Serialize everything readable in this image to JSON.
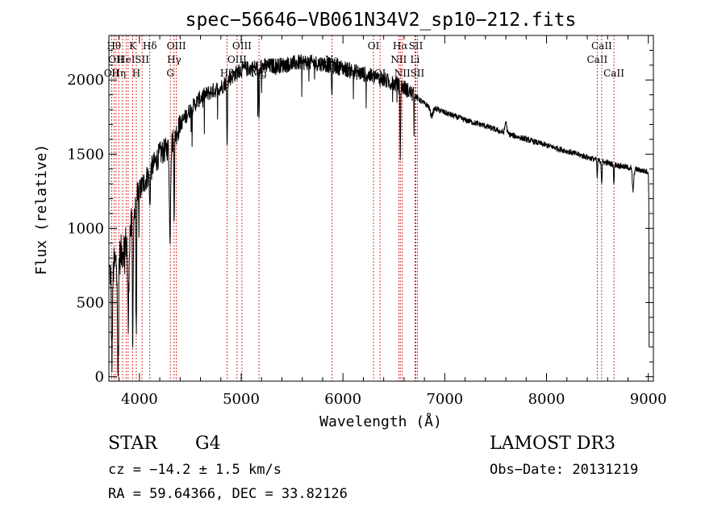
{
  "chart_data": {
    "type": "line",
    "title": "spec−56646−VB061N34V2_sp10−212.fits",
    "xlabel": "Wavelength (Å)",
    "ylabel": "Flux (relative)",
    "xlim": [
      3700,
      9050
    ],
    "ylim": [
      -30,
      2300
    ],
    "xticks": [
      4000,
      5000,
      6000,
      7000,
      8000,
      9000
    ],
    "yticks": [
      0,
      500,
      1000,
      1500,
      2000
    ],
    "grid": false,
    "line_color": "#000000",
    "marker_color": "#cc0000",
    "continuum": [
      [
        3700,
        700
      ],
      [
        3800,
        800
      ],
      [
        3900,
        950
      ],
      [
        4000,
        1250
      ],
      [
        4100,
        1380
      ],
      [
        4200,
        1500
      ],
      [
        4300,
        1550
      ],
      [
        4400,
        1700
      ],
      [
        4500,
        1800
      ],
      [
        4600,
        1880
      ],
      [
        4700,
        1920
      ],
      [
        4800,
        1950
      ],
      [
        4900,
        2020
      ],
      [
        5000,
        2070
      ],
      [
        5200,
        2090
      ],
      [
        5400,
        2100
      ],
      [
        5600,
        2120
      ],
      [
        5800,
        2110
      ],
      [
        6000,
        2080
      ],
      [
        6200,
        2040
      ],
      [
        6400,
        2000
      ],
      [
        6600,
        1950
      ],
      [
        6800,
        1840
      ],
      [
        7000,
        1780
      ],
      [
        7200,
        1730
      ],
      [
        7400,
        1690
      ],
      [
        7600,
        1640
      ],
      [
        7800,
        1600
      ],
      [
        8000,
        1560
      ],
      [
        8200,
        1520
      ],
      [
        8400,
        1480
      ],
      [
        8600,
        1440
      ],
      [
        8800,
        1410
      ],
      [
        9000,
        1380
      ]
    ],
    "absorption_features": [
      {
        "x": 3730,
        "depth": 600,
        "width": 8
      },
      {
        "x": 3790,
        "depth": 800,
        "width": 6
      },
      {
        "x": 3890,
        "depth": 600,
        "width": 8
      },
      {
        "x": 3934,
        "depth": 900,
        "width": 5
      },
      {
        "x": 3969,
        "depth": 800,
        "width": 5
      },
      {
        "x": 4102,
        "depth": 250,
        "width": 6
      },
      {
        "x": 4300,
        "depth": 650,
        "width": 8
      },
      {
        "x": 4341,
        "depth": 500,
        "width": 5
      },
      {
        "x": 4861,
        "depth": 450,
        "width": 5
      },
      {
        "x": 5175,
        "depth": 350,
        "width": 6
      },
      {
        "x": 5890,
        "depth": 200,
        "width": 5
      },
      {
        "x": 6563,
        "depth": 450,
        "width": 5
      },
      {
        "x": 6870,
        "depth": 60,
        "width": 20
      },
      {
        "x": 7600,
        "depth": -80,
        "width": 12
      },
      {
        "x": 8498,
        "depth": 120,
        "width": 5
      },
      {
        "x": 8542,
        "depth": 150,
        "width": 5
      },
      {
        "x": 8662,
        "depth": 130,
        "width": 5
      },
      {
        "x": 8850,
        "depth": 150,
        "width": 10
      },
      {
        "x": 9020,
        "depth": 1200,
        "width": 8
      }
    ],
    "line_markers": [
      {
        "x": 3727,
        "label": "OII",
        "row": 2
      },
      {
        "x": 3750,
        "label": "Hθ",
        "row": 0
      },
      {
        "x": 3770,
        "label": "OII",
        "row": 1
      },
      {
        "x": 3797,
        "label": "Hη",
        "row": 2
      },
      {
        "x": 3835,
        "label": "",
        "row": 0
      },
      {
        "x": 3869,
        "label": "HeI",
        "row": 1
      },
      {
        "x": 3889,
        "label": "",
        "row": 0
      },
      {
        "x": 3934,
        "label": "K",
        "row": 0
      },
      {
        "x": 3969,
        "label": "H",
        "row": 2
      },
      {
        "x": 4026,
        "label": "SII",
        "row": 1
      },
      {
        "x": 4102,
        "label": "Hδ",
        "row": 0
      },
      {
        "x": 4304,
        "label": "G",
        "row": 2
      },
      {
        "x": 4341,
        "label": "Hγ",
        "row": 1
      },
      {
        "x": 4363,
        "label": "OIII",
        "row": 0
      },
      {
        "x": 4861,
        "label": "Hβ",
        "row": 2
      },
      {
        "x": 4959,
        "label": "OIII",
        "row": 1
      },
      {
        "x": 5007,
        "label": "OIII",
        "row": 0
      },
      {
        "x": 5175,
        "label": "Mg",
        "row": 2
      },
      {
        "x": 5893,
        "label": "Na",
        "row": 1
      },
      {
        "x": 6300,
        "label": "OI",
        "row": 0
      },
      {
        "x": 6364,
        "label": "OI",
        "row": 2
      },
      {
        "x": 6548,
        "label": "NII",
        "row": 1
      },
      {
        "x": 6563,
        "label": "Hα",
        "row": 0
      },
      {
        "x": 6583,
        "label": "NII",
        "row": 2
      },
      {
        "x": 6707,
        "label": "Li",
        "row": 1
      },
      {
        "x": 6716,
        "label": "SII",
        "row": 0
      },
      {
        "x": 6731,
        "label": "SII",
        "row": 2
      },
      {
        "x": 8498,
        "label": "CaII",
        "row": 1
      },
      {
        "x": 8542,
        "label": "CaII",
        "row": 0
      },
      {
        "x": 8662,
        "label": "CaII",
        "row": 2
      }
    ]
  },
  "info": {
    "object_type": "STAR",
    "subclass": "G4",
    "survey": "LAMOST DR3",
    "redshift": "cz = −14.2 ± 1.5 km/s",
    "obs_date": "Obs−Date: 20131219",
    "coordinates": "RA =  59.64366, DEC =  33.82126"
  }
}
